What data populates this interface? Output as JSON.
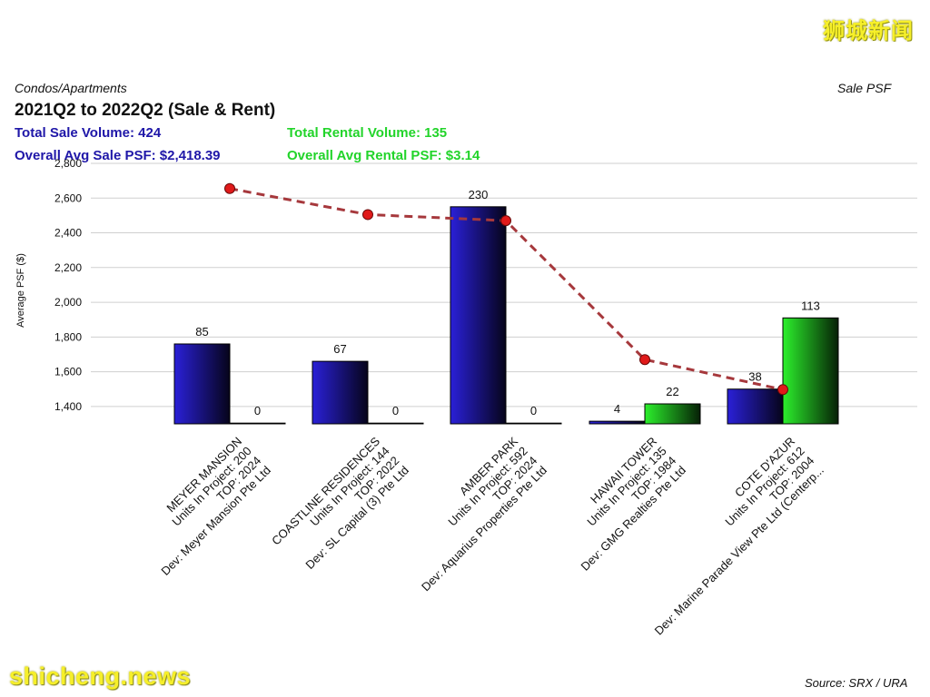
{
  "watermarks": {
    "top_right": "狮城新闻",
    "bottom_left": "shicheng.news"
  },
  "header": {
    "category": "Condos/Apartments",
    "metric": "Sale PSF",
    "title": "2021Q2 to 2022Q2 (Sale & Rent)",
    "total_sale_volume": "Total Sale Volume: 424",
    "total_rental_volume": "Total Rental Volume: 135",
    "avg_sale_psf": "Overall Avg Sale PSF: $2,418.39",
    "avg_rental_psf": "Overall Avg Rental PSF: $3.14"
  },
  "source": "Source: SRX / URA",
  "colors": {
    "sale": "#1f17a8",
    "rent": "#22d42a",
    "line": "#a6383c",
    "marker": "#e01a1a"
  },
  "chart_data": {
    "type": "bar",
    "ylabel": "Average PSF ($)",
    "ylim": [
      1300,
      2800
    ],
    "yticks": [
      "1,400",
      "1,600",
      "1,800",
      "2,000",
      "2,200",
      "2,400",
      "2,600",
      "2,800"
    ],
    "ytick_values": [
      1400,
      1600,
      1800,
      2000,
      2200,
      2400,
      2600,
      2800
    ],
    "categories": [
      [
        "MEYER MANSION",
        "Units In Project: 200",
        "TOP: 2024",
        "Dev: Meyer Mansion Pte Ltd"
      ],
      [
        "COASTLINE RESIDENCES",
        "Units In Project: 144",
        "TOP: 2022",
        "Dev: SL Capital (3) Pte Ltd"
      ],
      [
        "AMBER PARK",
        "Units In Project: 592",
        "TOP: 2024",
        "Dev: Aquarius Properties Pte Ltd"
      ],
      [
        "HAWAII TOWER",
        "Units In Project: 135",
        "TOP: 1984",
        "Dev: GMG Realties Pte Ltd"
      ],
      [
        "COTE D'AZUR",
        "Units In Project: 612",
        "TOP: 2004",
        "Dev: Marine Parade View Pte Ltd (Centerp..."
      ]
    ],
    "series": [
      {
        "name": "Sale Volume",
        "kind": "bar",
        "bar_heights": [
          1760,
          1660,
          2550,
          1315,
          1500
        ],
        "labels": [
          "85",
          "67",
          "230",
          "4",
          "38"
        ]
      },
      {
        "name": "Rental Volume",
        "kind": "bar",
        "bar_heights": [
          1300,
          1300,
          1300,
          1415,
          1910
        ],
        "labels": [
          "0",
          "0",
          "0",
          "22",
          "113"
        ]
      },
      {
        "name": "Sale PSF",
        "kind": "line",
        "values": [
          2655,
          2505,
          2470,
          1670,
          1497
        ]
      }
    ]
  }
}
